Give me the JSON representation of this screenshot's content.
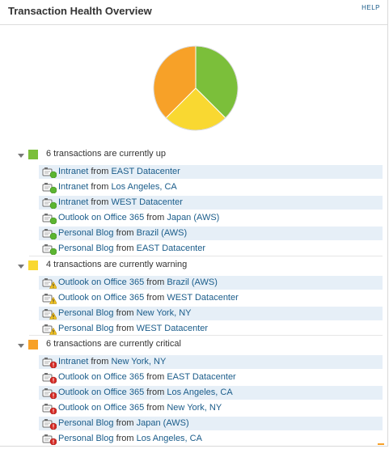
{
  "header": {
    "title": "Transaction Health Overview",
    "help_label": "HELP"
  },
  "colors": {
    "up": "#7bbf3a",
    "warning": "#f9d831",
    "critical": "#f7a128",
    "link": "#1a5c8a",
    "stripe": "#e6eff7"
  },
  "chart_data": {
    "type": "pie",
    "title": "",
    "slices": [
      {
        "label": "up",
        "value": 6,
        "color": "#7bbf3a"
      },
      {
        "label": "warning",
        "value": 4,
        "color": "#f9d831"
      },
      {
        "label": "critical",
        "value": 6,
        "color": "#f7a128"
      }
    ]
  },
  "groups": [
    {
      "status": "up",
      "swatch_color": "#7bbf3a",
      "label": "6 transactions are currently up",
      "items": [
        {
          "name": "Intranet",
          "from": "from",
          "location": "EAST Datacenter"
        },
        {
          "name": "Intranet",
          "from": "from",
          "location": "Los Angeles, CA"
        },
        {
          "name": "Intranet",
          "from": "from",
          "location": "WEST Datacenter"
        },
        {
          "name": "Outlook on Office 365",
          "from": "from",
          "location": "Japan (AWS)"
        },
        {
          "name": "Personal Blog",
          "from": "from",
          "location": "Brazil (AWS)"
        },
        {
          "name": "Personal Blog",
          "from": "from",
          "location": "EAST Datacenter"
        }
      ]
    },
    {
      "status": "warning",
      "swatch_color": "#f9d831",
      "label": "4 transactions are currently warning",
      "items": [
        {
          "name": "Outlook on Office 365",
          "from": "from",
          "location": "Brazil (AWS)"
        },
        {
          "name": "Outlook on Office 365",
          "from": "from",
          "location": "WEST Datacenter"
        },
        {
          "name": "Personal Blog",
          "from": "from",
          "location": "New York, NY"
        },
        {
          "name": "Personal Blog",
          "from": "from",
          "location": "WEST Datacenter"
        }
      ]
    },
    {
      "status": "critical",
      "swatch_color": "#f7a128",
      "label": "6 transactions are currently critical",
      "items": [
        {
          "name": "Intranet",
          "from": "from",
          "location": "New York, NY"
        },
        {
          "name": "Outlook on Office 365",
          "from": "from",
          "location": "EAST Datacenter"
        },
        {
          "name": "Outlook on Office 365",
          "from": "from",
          "location": "Los Angeles, CA"
        },
        {
          "name": "Outlook on Office 365",
          "from": "from",
          "location": "New York, NY"
        },
        {
          "name": "Personal Blog",
          "from": "from",
          "location": "Japan (AWS)"
        },
        {
          "name": "Personal Blog",
          "from": "from",
          "location": "Los Angeles, CA"
        }
      ]
    }
  ]
}
